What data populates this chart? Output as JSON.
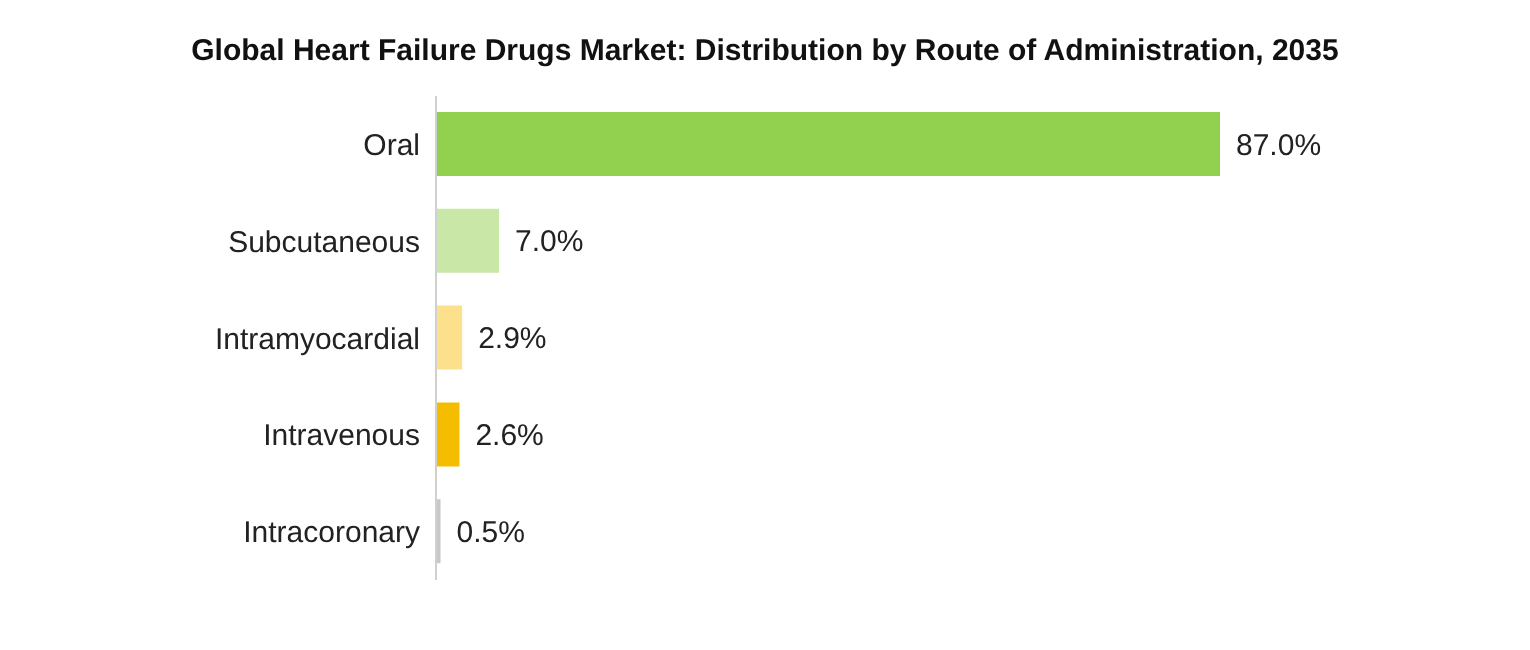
{
  "chart_data": {
    "type": "bar",
    "orientation": "horizontal",
    "title": "Global Heart Failure Drugs Market: Distribution by Route of Administration, 2035",
    "categories": [
      "Oral",
      "Subcutaneous",
      "Intramyocardial",
      "Intravenous",
      "Intracoronary"
    ],
    "values": [
      87.0,
      7.0,
      2.9,
      2.6,
      0.5
    ],
    "colors": [
      "#92d050",
      "#c9e7a7",
      "#fde08c",
      "#f5bd00",
      "#c8c8c8"
    ],
    "value_labels": [
      "87.0%",
      "7.0%",
      "2.9%",
      "2.6%",
      "0.5%"
    ],
    "grid": false,
    "legend": false
  }
}
